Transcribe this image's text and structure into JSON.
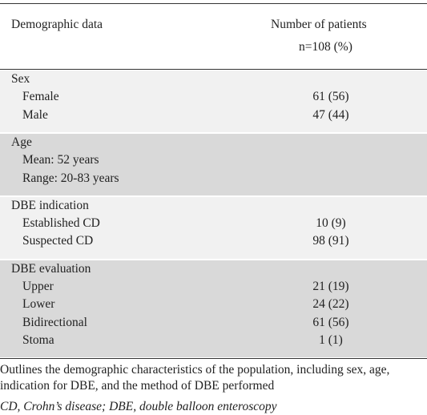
{
  "table": {
    "header": [
      "Demographic data",
      "Number of patients"
    ],
    "subheader": "n=108 (%)",
    "sections": [
      {
        "label": "Sex",
        "rows": [
          {
            "label": "Female",
            "value": "61 (56)"
          },
          {
            "label": "Male",
            "value": "47 (44)"
          }
        ]
      },
      {
        "label": "Age",
        "rows": [
          {
            "label": "Mean: 52 years"
          },
          {
            "label": "Range: 20-83 years"
          }
        ]
      },
      {
        "label": "DBE indication",
        "rows": [
          {
            "label": "Established CD",
            "value": "10 (9)"
          },
          {
            "label": "Suspected CD",
            "value": "98 (91)"
          }
        ]
      },
      {
        "label": "DBE evaluation",
        "rows": [
          {
            "label": "Upper",
            "value": "21 (19)"
          },
          {
            "label": "Lower",
            "value": "24 (22)"
          },
          {
            "label": "Bidirectional",
            "value": "61 (56)"
          },
          {
            "label": "Stoma",
            "value": "1 (1)"
          }
        ]
      }
    ]
  },
  "footnote": "Outlines the demographic characteristics of the population, including sex, age, indication for DBE, and the method of DBE performed",
  "abbreviations": "CD, Crohn’s disease; DBE, double balloon enteroscopy"
}
